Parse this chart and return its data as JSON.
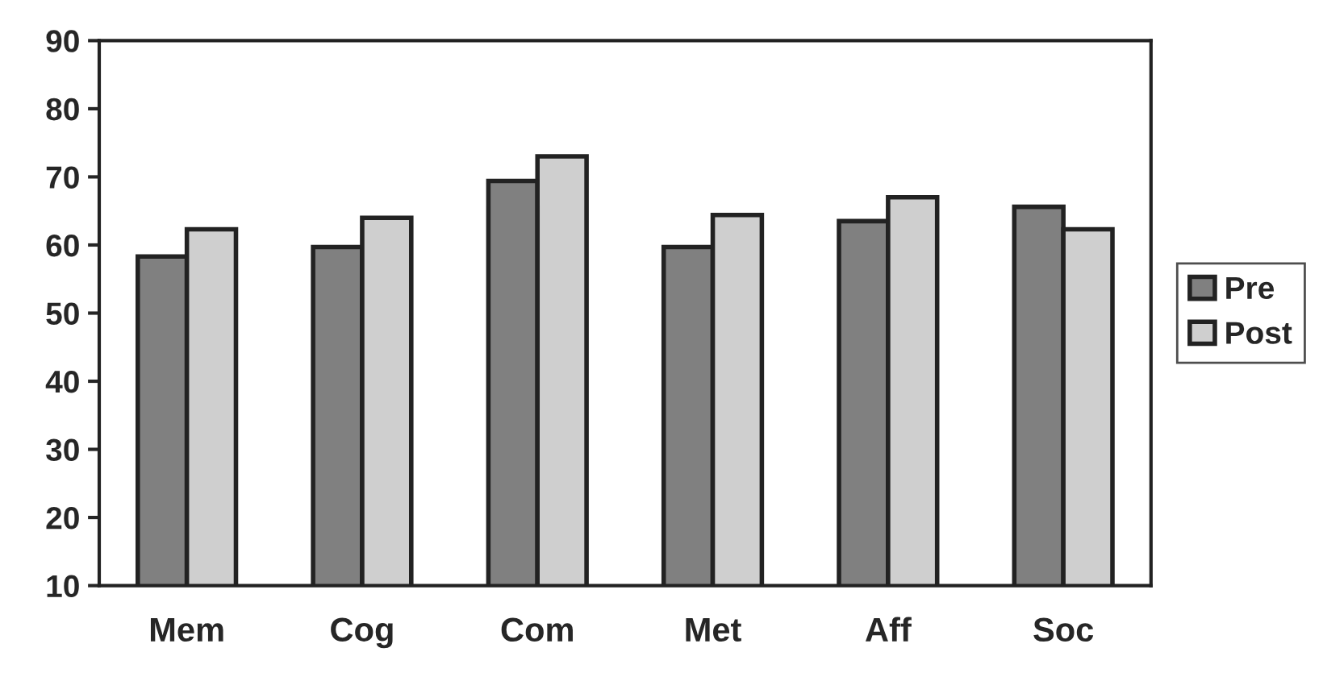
{
  "chart_data": {
    "type": "bar",
    "categories": [
      "Mem",
      "Cog",
      "Com",
      "Met",
      "Aff",
      "Soc"
    ],
    "series": [
      {
        "name": "Pre",
        "color": "#808080",
        "values": [
          58.3,
          59.7,
          69.4,
          59.7,
          63.5,
          65.6
        ]
      },
      {
        "name": "Post",
        "color": "#cfcfcf",
        "values": [
          62.3,
          64.0,
          73.0,
          64.4,
          67.0,
          62.3
        ]
      }
    ],
    "ylim": [
      10,
      90
    ],
    "yticks": [
      10,
      20,
      30,
      40,
      50,
      60,
      70,
      80,
      90
    ],
    "grid": false,
    "legend": "right"
  }
}
